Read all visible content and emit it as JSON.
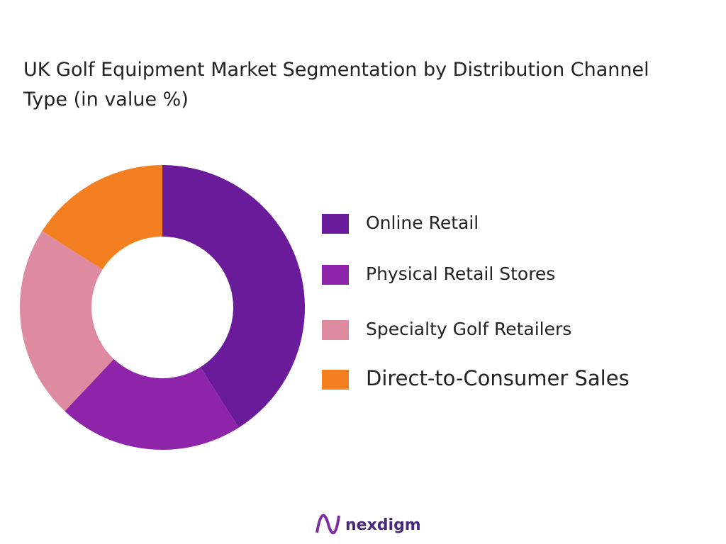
{
  "chart_data": {
    "type": "donut",
    "title": "UK Golf Equipment Market Segmentation by Distribution Channel Type  (in value %)",
    "categories": [
      "Online Retail",
      "Physical Retail Stores",
      "Specialty Golf Retailers",
      "Direct-to-Consumer Sales"
    ],
    "values": [
      41,
      21,
      22,
      16
    ],
    "colors": [
      "#6a1b9a",
      "#8e24aa",
      "#de8aa0",
      "#f47f20"
    ]
  },
  "brand": "nexdigm"
}
